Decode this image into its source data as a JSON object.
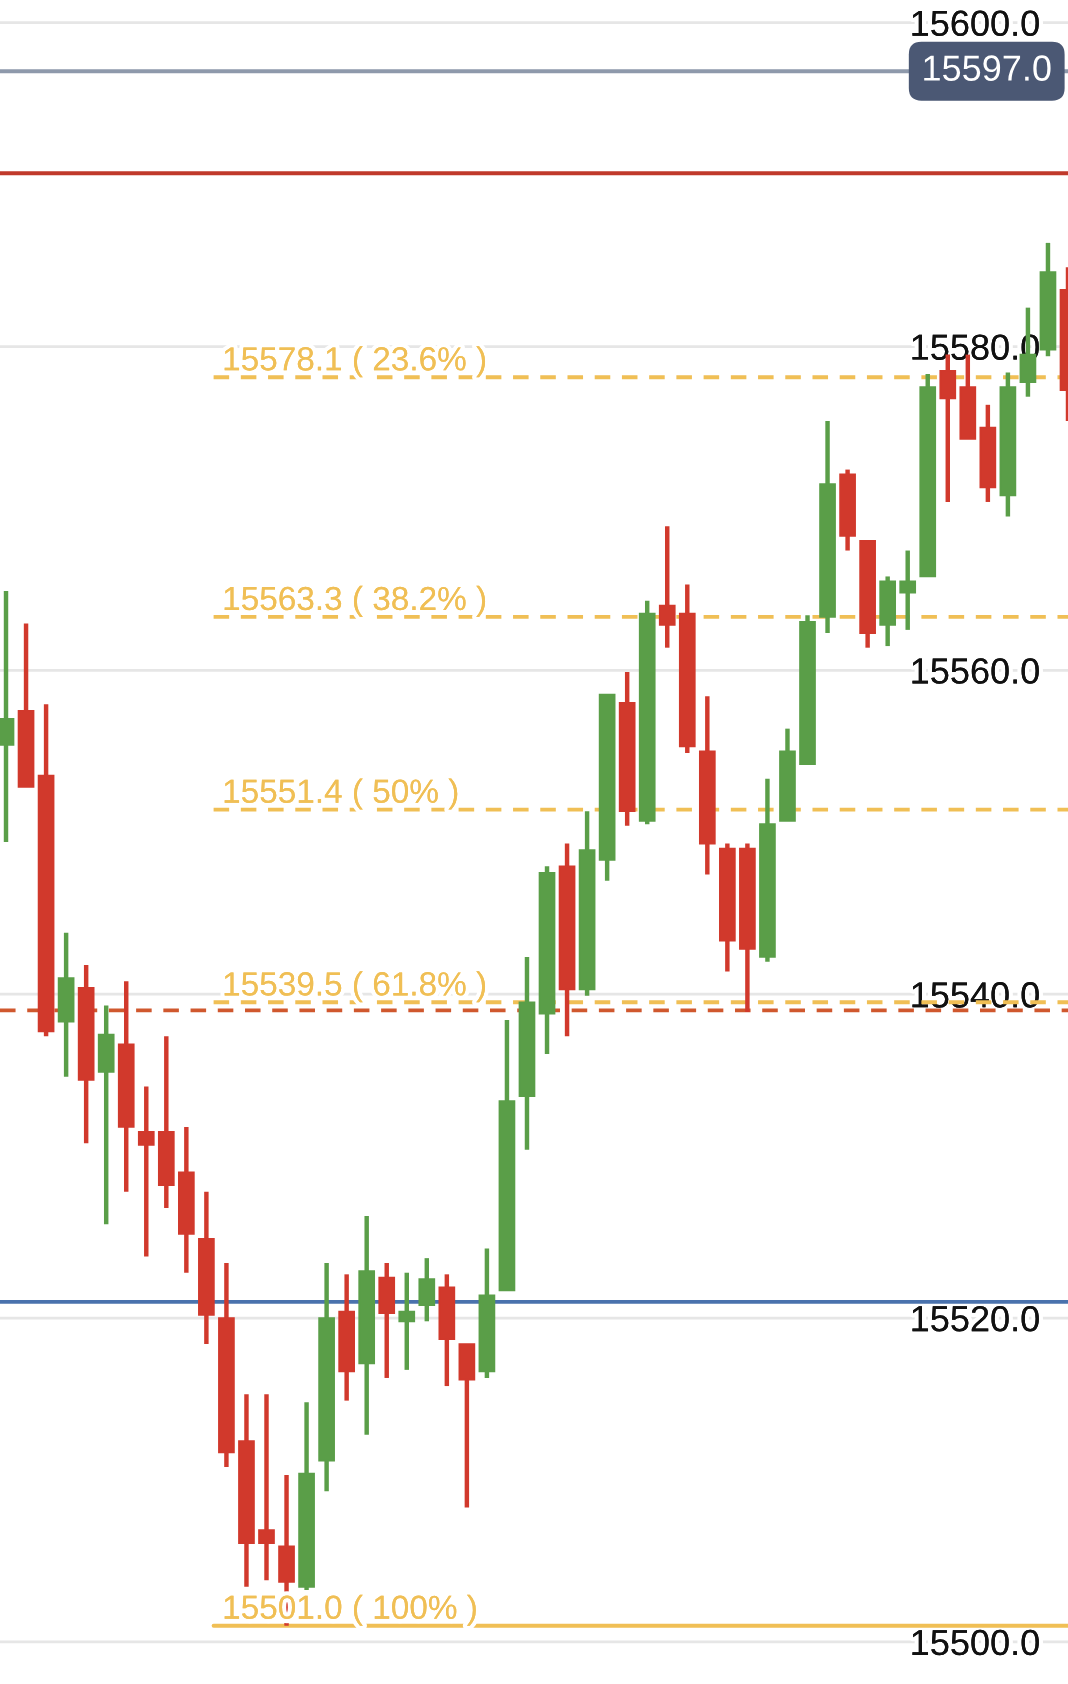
{
  "chart_data": {
    "type": "candlestick",
    "categories": [
      null,
      null,
      null,
      null,
      null,
      null,
      null,
      null,
      null,
      null,
      null,
      null,
      null,
      null,
      null,
      null,
      null,
      null,
      null,
      null,
      null,
      null,
      null,
      null,
      null,
      null,
      null,
      null,
      null,
      null,
      null,
      null,
      null,
      null,
      null,
      null,
      null,
      null,
      null,
      null,
      null,
      null,
      null,
      null,
      null,
      null,
      null,
      null,
      null,
      null,
      null,
      null,
      null,
      null
    ],
    "ohlc": [
      [
        15555.4,
        15564.9,
        15549.4,
        15557.0
      ],
      [
        15557.5,
        15562.9,
        15552.8,
        15552.8
      ],
      [
        15553.5,
        15557.9,
        15537.4,
        15537.7
      ],
      [
        15538.3,
        15543.8,
        15534.9,
        15541.0
      ],
      [
        15540.4,
        15541.8,
        15530.8,
        15534.7
      ],
      [
        15535.2,
        15539.3,
        15525.8,
        15537.5
      ],
      [
        15536.9,
        15540.8,
        15527.8,
        15531.8
      ],
      [
        15531.5,
        15534.3,
        15523.8,
        15530.7
      ],
      [
        15531.5,
        15537.4,
        15526.8,
        15528.2
      ],
      [
        15529.0,
        15531.8,
        15522.8,
        15525.2
      ],
      [
        15524.9,
        15527.8,
        15518.4,
        15520.2
      ],
      [
        15520.0,
        15523.4,
        15510.8,
        15511.7
      ],
      [
        15512.4,
        15515.3,
        15503.4,
        15506.1
      ],
      [
        15506.9,
        15515.3,
        15503.8,
        15506.1
      ],
      [
        15505.9,
        15510.3,
        15501.0,
        15503.7
      ],
      [
        15503.4,
        15514.8,
        15503.2,
        15510.4
      ],
      [
        15511.2,
        15523.4,
        15509.3,
        15520.0
      ],
      [
        15520.4,
        15522.7,
        15514.9,
        15516.7
      ],
      [
        15517.2,
        15526.3,
        15512.8,
        15522.9
      ],
      [
        15522.5,
        15523.4,
        15516.3,
        15520.3
      ],
      [
        15519.8,
        15522.8,
        15516.8,
        15520.4
      ],
      [
        15520.8,
        15523.7,
        15519.8,
        15522.4
      ],
      [
        15521.9,
        15522.7,
        15515.8,
        15518.7
      ],
      [
        15518.4,
        15518.4,
        15508.3,
        15516.2
      ],
      [
        15516.7,
        15524.3,
        15516.3,
        15521.4
      ],
      [
        15521.7,
        15538.4,
        15521.7,
        15533.4
      ],
      [
        15533.7,
        15542.3,
        15530.4,
        15539.5
      ],
      [
        15538.8,
        15547.9,
        15536.3,
        15547.5
      ],
      [
        15547.9,
        15549.3,
        15537.4,
        15540.3
      ],
      [
        15540.3,
        15551.3,
        15539.9,
        15548.9
      ],
      [
        15548.3,
        15558.5,
        15547.0,
        15558.5
      ],
      [
        15558.0,
        15559.9,
        15550.4,
        15551.3
      ],
      [
        15550.7,
        15564.3,
        15550.5,
        15563.5
      ],
      [
        15564.0,
        15568.9,
        15561.4,
        15562.8
      ],
      [
        15563.5,
        15565.3,
        15554.9,
        15555.3
      ],
      [
        15555.0,
        15558.4,
        15547.4,
        15549.3
      ],
      [
        15549.0,
        15549.3,
        15541.4,
        15543.3
      ],
      [
        15549.0,
        15549.3,
        15538.9,
        15542.8
      ],
      [
        15542.3,
        15553.3,
        15542.0,
        15550.5
      ],
      [
        15550.7,
        15556.4,
        15550.7,
        15555.0
      ],
      [
        15554.2,
        15563.4,
        15554.2,
        15563.0
      ],
      [
        15563.3,
        15575.4,
        15562.3,
        15571.5
      ],
      [
        15572.1,
        15572.4,
        15567.4,
        15568.3
      ],
      [
        15568.0,
        15568.0,
        15561.4,
        15562.3
      ],
      [
        15562.8,
        15565.8,
        15561.5,
        15565.5
      ],
      [
        15564.8,
        15567.4,
        15562.5,
        15565.5
      ],
      [
        15565.8,
        15578.3,
        15565.8,
        15577.5
      ],
      [
        15578.5,
        15579.5,
        15570.4,
        15576.8
      ],
      [
        15577.5,
        15579.5,
        15574.3,
        15574.3
      ],
      [
        15575.0,
        15576.4,
        15570.4,
        15571.3
      ],
      [
        15570.8,
        15578.4,
        15569.5,
        15577.5
      ],
      [
        15577.8,
        15582.4,
        15576.9,
        15579.5
      ],
      [
        15579.8,
        15586.4,
        15579.4,
        15584.6
      ],
      [
        15583.5,
        15584.9,
        15575.4,
        15577.3
      ]
    ],
    "colors": [
      "#5a9e48",
      "#d1392c",
      "#d1392c",
      "#5a9e48",
      "#d1392c",
      "#5a9e48",
      "#d1392c",
      "#d1392c",
      "#d1392c",
      "#d1392c",
      "#d1392c",
      "#d1392c",
      "#d1392c",
      "#d1392c",
      "#d1392c",
      "#5a9e48",
      "#5a9e48",
      "#d1392c",
      "#5a9e48",
      "#d1392c",
      "#5a9e48",
      "#5a9e48",
      "#d1392c",
      "#d1392c",
      "#5a9e48",
      "#5a9e48",
      "#5a9e48",
      "#5a9e48",
      "#d1392c",
      "#5a9e48",
      "#5a9e48",
      "#d1392c",
      "#5a9e48",
      "#d1392c",
      "#d1392c",
      "#d1392c",
      "#d1392c",
      "#d1392c",
      "#5a9e48",
      "#5a9e48",
      "#5a9e48",
      "#5a9e48",
      "#d1392c",
      "#d1392c",
      "#5a9e48",
      "#5a9e48",
      "#5a9e48",
      "#d1392c",
      "#d1392c",
      "#d1392c",
      "#5a9e48",
      "#5a9e48",
      "#5a9e48",
      "#d1392c"
    ],
    "ylim": [
      15497.4,
      15601.4
    ],
    "yticks": [
      {
        "value": 15500,
        "label": "15500.0"
      },
      {
        "value": 15520,
        "label": "15520.0"
      },
      {
        "value": 15540,
        "label": "15540.0"
      },
      {
        "value": 15560,
        "label": "15560.0"
      },
      {
        "value": 15580,
        "label": "15580.0"
      },
      {
        "value": 15600,
        "label": "15600.0"
      }
    ],
    "grid": "y",
    "ref_lines": [
      {
        "axis": "y",
        "value": 15597.0,
        "color": "#8e99ab",
        "line_style": "solid"
      },
      {
        "axis": "y",
        "value": 15590.7,
        "color": "#c0392b",
        "line_style": "solid"
      },
      {
        "axis": "y",
        "value": 15539.0,
        "color": "#d0582e",
        "line_style": "dashed"
      },
      {
        "axis": "y",
        "value": 15521.0,
        "color": "#4a72ad",
        "line_style": "solid"
      },
      {
        "axis": "y",
        "value": 15578.1,
        "label": "15578.1 ( 23.6% )",
        "color": "#f0bf55",
        "line_style": "dashed"
      },
      {
        "axis": "y",
        "value": 15563.3,
        "label": "15563.3 ( 38.2% )",
        "color": "#f0bf55",
        "line_style": "dashed"
      },
      {
        "axis": "y",
        "value": 15551.4,
        "label": "15551.4 ( 50% )",
        "color": "#f0bf55",
        "line_style": "dashed"
      },
      {
        "axis": "y",
        "value": 15539.5,
        "label": "15539.5 ( 61.8% )",
        "color": "#f0bf55",
        "line_style": "dashed"
      },
      {
        "axis": "y",
        "value": 15501.0,
        "label": "15501.0 ( 100% )",
        "color": "#f0bf55",
        "line_style": "solid"
      }
    ],
    "annotations": [
      {
        "text": "15597.0",
        "y": 15597.0
      }
    ]
  }
}
